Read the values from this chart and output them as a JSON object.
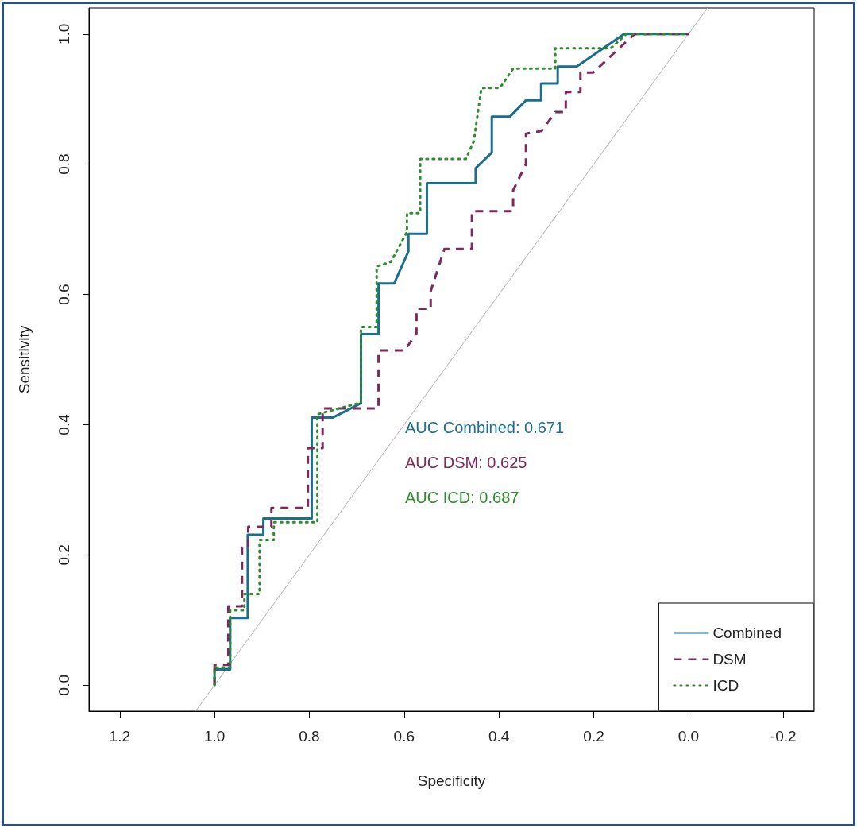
{
  "chart_data": {
    "type": "line",
    "xlabel": "Specificity",
    "ylabel": "Sensitivity",
    "xlim": [
      1.265,
      -0.265
    ],
    "ylim": [
      -0.04,
      1.04
    ],
    "xticks": [
      {
        "value": 1.2,
        "label": "1.2"
      },
      {
        "value": 1,
        "label": "1.0"
      },
      {
        "value": 0.8,
        "label": "0.8"
      },
      {
        "value": 0.6,
        "label": "0.6"
      },
      {
        "value": 0.4,
        "label": "0.4"
      },
      {
        "value": 0.2,
        "label": "0.2"
      },
      {
        "value": 0,
        "label": "0.0"
      },
      {
        "value": -0.2,
        "label": "-0.2"
      }
    ],
    "yticks": [
      {
        "value": 0,
        "label": "0.0"
      },
      {
        "value": 0.2,
        "label": "0.2"
      },
      {
        "value": 0.4,
        "label": "0.4"
      },
      {
        "value": 0.6,
        "label": "0.6"
      },
      {
        "value": 0.8,
        "label": "0.8"
      },
      {
        "value": 1,
        "label": "1.0"
      }
    ],
    "grid": false,
    "legend": "bottom right",
    "marker": "none",
    "series": [
      {
        "name": "Combined",
        "color": "#1a6e8e",
        "line_style": "solid",
        "x": [
          1,
          1,
          0.967,
          0.967,
          0.93,
          0.93,
          0.897,
          0.897,
          0.795,
          0.795,
          0.75,
          0.691,
          0.691,
          0.654,
          0.654,
          0.621,
          0.591,
          0.591,
          0.552,
          0.552,
          0.449,
          0.449,
          0.415,
          0.415,
          0.377,
          0.343,
          0.311,
          0.311,
          0.276,
          0.276,
          0.236,
          0.136,
          0
        ],
        "values": [
          0,
          0.024,
          0.024,
          0.103,
          0.103,
          0.231,
          0.231,
          0.256,
          0.256,
          0.411,
          0.411,
          0.433,
          0.539,
          0.539,
          0.617,
          0.617,
          0.666,
          0.693,
          0.693,
          0.771,
          0.771,
          0.794,
          0.818,
          0.873,
          0.873,
          0.898,
          0.898,
          0.924,
          0.924,
          0.95,
          0.95,
          1,
          1
        ]
      },
      {
        "name": "DSM",
        "color": "#7b2a5a",
        "line_style": "dashed",
        "x": [
          1,
          1,
          0.971,
          0.971,
          0.942,
          0.942,
          0.929,
          0.929,
          0.88,
          0.88,
          0.803,
          0.803,
          0.772,
          0.772,
          0.654,
          0.654,
          0.599,
          0.574,
          0.574,
          0.544,
          0.544,
          0.515,
          0.457,
          0.457,
          0.37,
          0.37,
          0.343,
          0.343,
          0.31,
          0.281,
          0.259,
          0.259,
          0.228,
          0.228,
          0.201,
          0.114,
          0
        ],
        "values": [
          0,
          0.031,
          0.031,
          0.121,
          0.121,
          0.211,
          0.211,
          0.243,
          0.243,
          0.272,
          0.272,
          0.364,
          0.364,
          0.425,
          0.425,
          0.514,
          0.514,
          0.54,
          0.578,
          0.578,
          0.605,
          0.67,
          0.67,
          0.728,
          0.728,
          0.76,
          0.8,
          0.847,
          0.851,
          0.88,
          0.88,
          0.911,
          0.911,
          0.941,
          0.941,
          1,
          1
        ]
      },
      {
        "name": "ICD",
        "color": "#2e8b2e",
        "line_style": "dotted",
        "x": [
          1,
          1,
          0.967,
          0.967,
          0.937,
          0.937,
          0.905,
          0.905,
          0.875,
          0.875,
          0.783,
          0.783,
          0.691,
          0.691,
          0.658,
          0.658,
          0.628,
          0.594,
          0.594,
          0.566,
          0.566,
          0.47,
          0.453,
          0.437,
          0.398,
          0.37,
          0.281,
          0.281,
          0.164,
          0.131,
          0
        ],
        "values": [
          0,
          0.027,
          0.027,
          0.115,
          0.115,
          0.14,
          0.14,
          0.223,
          0.223,
          0.25,
          0.25,
          0.416,
          0.434,
          0.55,
          0.55,
          0.643,
          0.65,
          0.696,
          0.725,
          0.725,
          0.808,
          0.808,
          0.835,
          0.917,
          0.917,
          0.947,
          0.947,
          0.978,
          0.978,
          1,
          1
        ]
      },
      {
        "color": "#b0b0b0",
        "line_style": "solid",
        "x": [
          1.04,
          -0.04
        ],
        "values": [
          -0.04,
          1.04
        ]
      }
    ],
    "annotations": [
      "AUC Combined: 0.671",
      "AUC DSM: 0.625",
      "AUC ICD: 0.687"
    ]
  }
}
